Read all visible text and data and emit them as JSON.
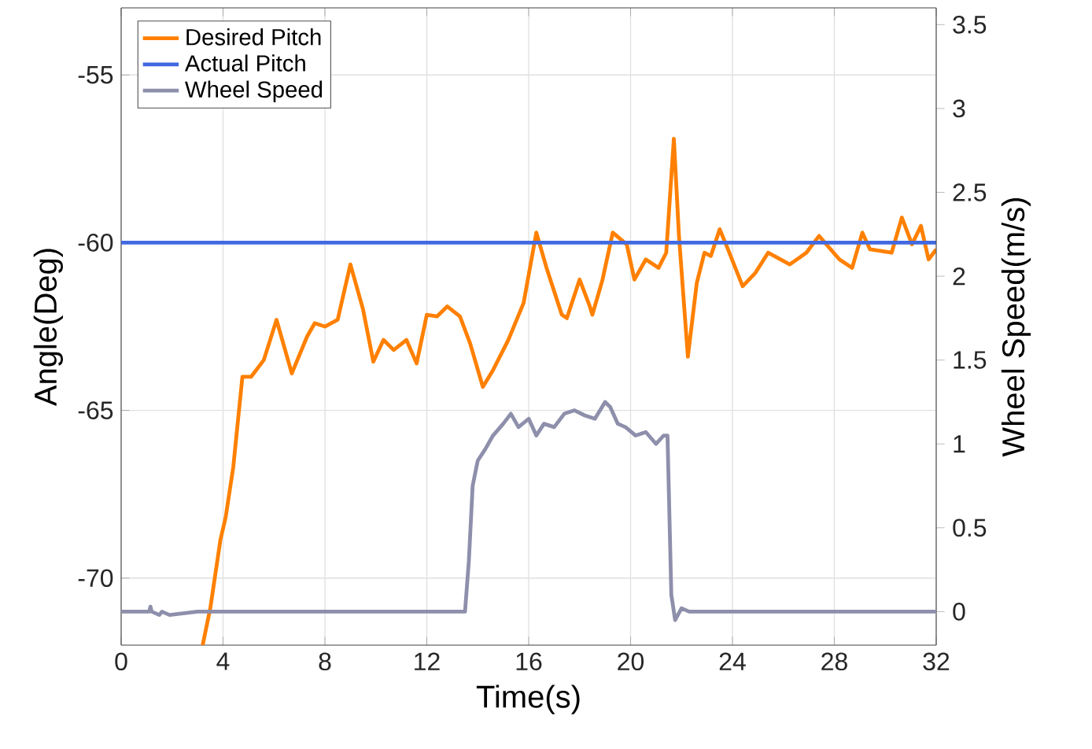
{
  "chart_data": {
    "type": "line",
    "xlabel": "Time(s)",
    "ylabel": "Angle(Deg)",
    "y2label": "Wheel Speed(m/s)",
    "xlim": [
      0,
      32
    ],
    "xticks": [
      0,
      4,
      8,
      12,
      16,
      20,
      24,
      28,
      32
    ],
    "ylim": [
      -72,
      -53
    ],
    "yticks": [
      -70,
      -65,
      -60,
      -55
    ],
    "y2lim": [
      -0.2,
      3.6
    ],
    "y2ticks": [
      0,
      0.5,
      1,
      1.5,
      2,
      2.5,
      3,
      3.5
    ],
    "grid": true,
    "legend": "top left",
    "line_style": "solid",
    "marker": "none",
    "series": [
      {
        "name": "Desired Pitch",
        "color": "#ff8000",
        "x": [
          3.2,
          3.5,
          3.9,
          4.1,
          4.4,
          4.76,
          5.1,
          5.6,
          6.1,
          6.7,
          7.3,
          7.6,
          8.0,
          8.5,
          9.0,
          9.5,
          9.9,
          10.3,
          10.7,
          11.2,
          11.6,
          12.0,
          12.4,
          12.8,
          13.3,
          13.7,
          14.2,
          14.6,
          15.2,
          15.8,
          16.3,
          16.7,
          17.3,
          17.5,
          18.0,
          18.4,
          18.5,
          18.9,
          19.3,
          19.85,
          20.15,
          20.6,
          21.1,
          21.4,
          21.7,
          21.9,
          22.25,
          22.6,
          22.9,
          23.15,
          23.5,
          23.8,
          24.4,
          24.9,
          25.4,
          26.25,
          26.9,
          27.4,
          28.2,
          28.7,
          29.1,
          29.4,
          30.25,
          30.65,
          31.05,
          31.4,
          31.7,
          32
        ],
        "values": [
          -72,
          -70.9,
          -68.85,
          -68.2,
          -66.7,
          -64.0,
          -64.0,
          -63.5,
          -62.3,
          -63.9,
          -62.8,
          -62.4,
          -62.5,
          -62.3,
          -60.65,
          -62.0,
          -63.55,
          -62.9,
          -63.2,
          -62.9,
          -63.6,
          -62.15,
          -62.2,
          -61.9,
          -62.2,
          -63.0,
          -64.3,
          -63.8,
          -62.9,
          -61.8,
          -59.7,
          -60.75,
          -62.15,
          -62.25,
          -61.1,
          -61.9,
          -62.15,
          -61.1,
          -59.7,
          -60.05,
          -61.1,
          -60.5,
          -60.75,
          -60.3,
          -56.9,
          -59.8,
          -63.4,
          -61.2,
          -60.3,
          -60.4,
          -59.6,
          -60.15,
          -61.3,
          -60.9,
          -60.3,
          -60.65,
          -60.3,
          -59.8,
          -60.5,
          -60.75,
          -59.7,
          -60.2,
          -60.3,
          -59.25,
          -60.05,
          -59.5,
          -60.5,
          -60.2
        ]
      },
      {
        "name": "Actual Pitch",
        "color": "#4169e1",
        "x": [
          0,
          32
        ],
        "values": [
          -60,
          -60
        ]
      },
      {
        "name": "Wheel Speed",
        "color": "#8e8fab",
        "axis": "y2",
        "x": [
          0,
          1.1,
          1.15,
          1.2,
          1.5,
          1.6,
          1.9,
          3,
          13.5,
          13.65,
          13.8,
          14.0,
          14.3,
          14.6,
          15.0,
          15.3,
          15.6,
          16.0,
          16.3,
          16.6,
          17.0,
          17.4,
          17.8,
          18.2,
          18.6,
          19.0,
          19.2,
          19.5,
          19.8,
          20.2,
          20.6,
          21.0,
          21.3,
          21.45,
          21.6,
          21.75,
          22.0,
          22.3,
          23.5,
          32
        ],
        "values": [
          0,
          0,
          0.03,
          0,
          -0.02,
          0,
          -0.02,
          0,
          0,
          0.3,
          0.75,
          0.9,
          0.97,
          1.05,
          1.12,
          1.18,
          1.1,
          1.15,
          1.05,
          1.12,
          1.1,
          1.18,
          1.2,
          1.17,
          1.15,
          1.25,
          1.22,
          1.12,
          1.1,
          1.05,
          1.07,
          1.0,
          1.05,
          1.05,
          0.1,
          -0.05,
          0.02,
          0,
          0,
          0
        ]
      }
    ]
  }
}
